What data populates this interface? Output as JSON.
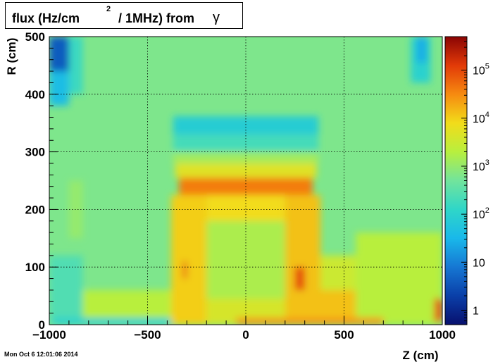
{
  "title": {
    "main": "flux (Hz/cm",
    "superscript": "2",
    "rest": "/ 1MHz) from",
    "particle": "γ"
  },
  "timestamp": "Mon Oct  6 12:01:06 2014",
  "chart_data": {
    "type": "heatmap",
    "title": "flux (Hz/cm2 / 1MHz) from γ",
    "xlabel": "Z (cm)",
    "ylabel": "R (cm)",
    "xlim": [
      -1000,
      1000
    ],
    "ylim": [
      0,
      500
    ],
    "x_ticks": [
      {
        "value": -1000,
        "label": "−1000"
      },
      {
        "value": -500,
        "label": "−500"
      },
      {
        "value": 0,
        "label": "0"
      },
      {
        "value": 500,
        "label": "500"
      },
      {
        "value": 1000,
        "label": "1000"
      }
    ],
    "y_ticks": [
      {
        "value": 0,
        "label": "0"
      },
      {
        "value": 100,
        "label": "100"
      },
      {
        "value": 200,
        "label": "200"
      },
      {
        "value": 300,
        "label": "300"
      },
      {
        "value": 400,
        "label": "400"
      },
      {
        "value": 500,
        "label": "500"
      }
    ],
    "grid": true,
    "colorbar": {
      "scale": "log",
      "range": [
        0.5,
        500000
      ],
      "ticks": [
        {
          "value": 1,
          "base": "1",
          "exp": ""
        },
        {
          "value": 10,
          "base": "10",
          "exp": ""
        },
        {
          "value": 100,
          "base": "10",
          "exp": "2"
        },
        {
          "value": 1000,
          "base": "10",
          "exp": "3"
        },
        {
          "value": 10000,
          "base": "10",
          "exp": "4"
        },
        {
          "value": 100000,
          "base": "10",
          "exp": "5"
        }
      ]
    },
    "background_log10": 2.8,
    "regions": [
      {
        "z": [
          -1000,
          1000
        ],
        "r": [
          0,
          60
        ],
        "log10": 3.3
      },
      {
        "z": [
          -1000,
          -900
        ],
        "r": [
          380,
          500
        ],
        "log10": 1.6
      },
      {
        "z": [
          -1000,
          -900
        ],
        "r": [
          440,
          500
        ],
        "log10": 0.6
      },
      {
        "z": [
          -900,
          -830
        ],
        "r": [
          400,
          500
        ],
        "log10": 2.2
      },
      {
        "z": [
          840,
          940
        ],
        "r": [
          420,
          500
        ],
        "log10": 2.0
      },
      {
        "z": [
          870,
          920
        ],
        "r": [
          455,
          500
        ],
        "log10": 1.4
      },
      {
        "z": [
          -1000,
          -830
        ],
        "r": [
          0,
          120
        ],
        "log10": 2.4
      },
      {
        "z": [
          -900,
          -830
        ],
        "r": [
          150,
          250
        ],
        "log10": 3.0
      },
      {
        "z": [
          -980,
          1000
        ],
        "r": [
          0,
          12
        ],
        "log10": 2.0
      },
      {
        "z": [
          -370,
          370
        ],
        "r": [
          330,
          362
        ],
        "log10": 1.9
      },
      {
        "z": [
          -370,
          370
        ],
        "r": [
          300,
          330
        ],
        "log10": 2.3
      },
      {
        "z": [
          -370,
          370
        ],
        "r": [
          280,
          300
        ],
        "log10": 3.1
      },
      {
        "z": [
          -360,
          360
        ],
        "r": [
          255,
          280
        ],
        "log10": 3.7
      },
      {
        "z": [
          -340,
          340
        ],
        "r": [
          225,
          255
        ],
        "log10": 4.6
      },
      {
        "z": [
          -380,
          -200
        ],
        "r": [
          0,
          225
        ],
        "log10": 4.0
      },
      {
        "z": [
          200,
          380
        ],
        "r": [
          0,
          225
        ],
        "log10": 4.1
      },
      {
        "z": [
          -200,
          200
        ],
        "r": [
          180,
          225
        ],
        "log10": 3.9
      },
      {
        "z": [
          -200,
          200
        ],
        "r": [
          0,
          180
        ],
        "log10": 3.2
      },
      {
        "z": [
          -200,
          200
        ],
        "r": [
          0,
          45
        ],
        "log10": 3.6
      },
      {
        "z": [
          380,
          1000
        ],
        "r": [
          0,
          60
        ],
        "log10": 4.1
      },
      {
        "z": [
          380,
          980
        ],
        "r": [
          60,
          120
        ],
        "log10": 3.5
      },
      {
        "z": [
          560,
          1000
        ],
        "r": [
          0,
          160
        ],
        "log10": 3.3
      },
      {
        "z": [
          -320,
          -300
        ],
        "r": [
          80,
          110
        ],
        "log10": 4.8
      },
      {
        "z": [
          250,
          300
        ],
        "r": [
          60,
          100
        ],
        "log10": 5.0
      },
      {
        "z": [
          960,
          1000
        ],
        "r": [
          5,
          45
        ],
        "log10": 5.0
      },
      {
        "z": [
          -50,
          700
        ],
        "r": [
          0,
          12
        ],
        "log10": 4.4
      }
    ]
  }
}
